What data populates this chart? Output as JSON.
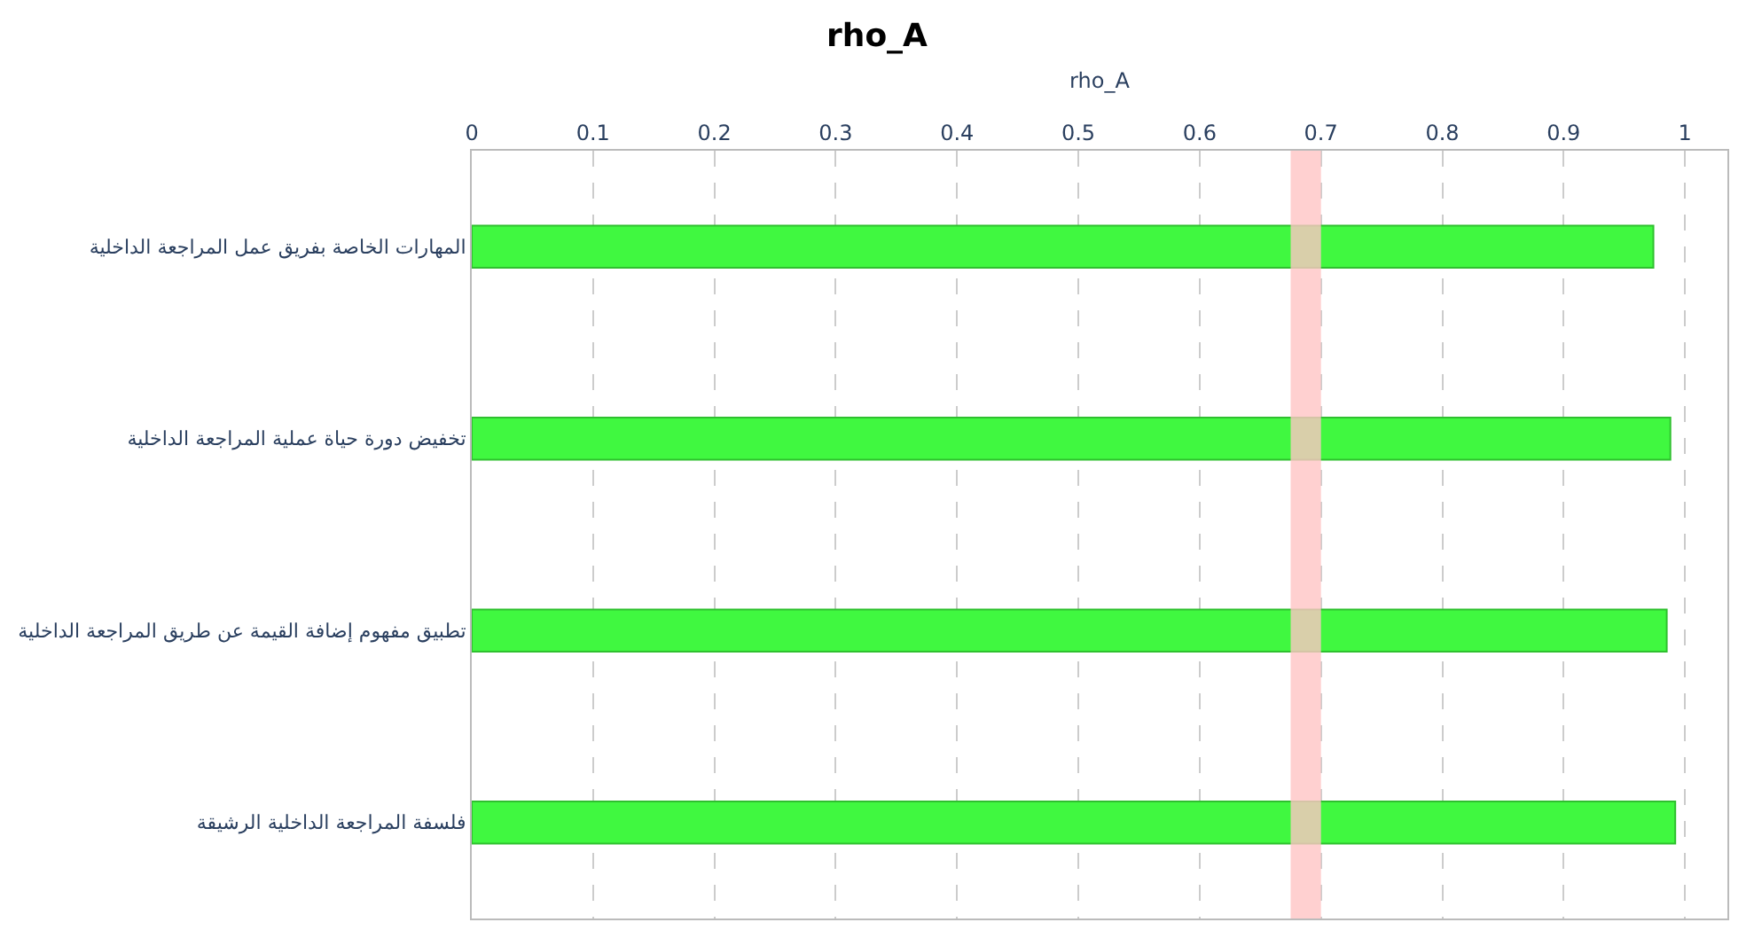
{
  "chart_data": {
    "type": "bar",
    "orientation": "horizontal",
    "title": "rho_A",
    "xlabel": "rho_A",
    "categories": [
      "المهارات الخاصة بفريق عمل المراجعة الداخلية",
      "تخفيض دورة حياة عملية المراجعة الداخلية",
      "تطبيق مفهوم إضافة القيمة عن طريق المراجعة الداخلية",
      "فلسفة المراجعة الداخلية الرشيقة"
    ],
    "values": [
      0.974,
      0.988,
      0.985,
      0.992
    ],
    "color": "#40f840",
    "xlim": [
      0,
      1.035
    ],
    "xticks": [
      0,
      0.1,
      0.2,
      0.3,
      0.4,
      0.5,
      0.6,
      0.7,
      0.8,
      0.9,
      1
    ],
    "bands": [
      {
        "axis": "x",
        "from": 0.675,
        "to": 0.7,
        "color": "#ffc4c4"
      }
    ],
    "grid": "x",
    "legend": false
  }
}
